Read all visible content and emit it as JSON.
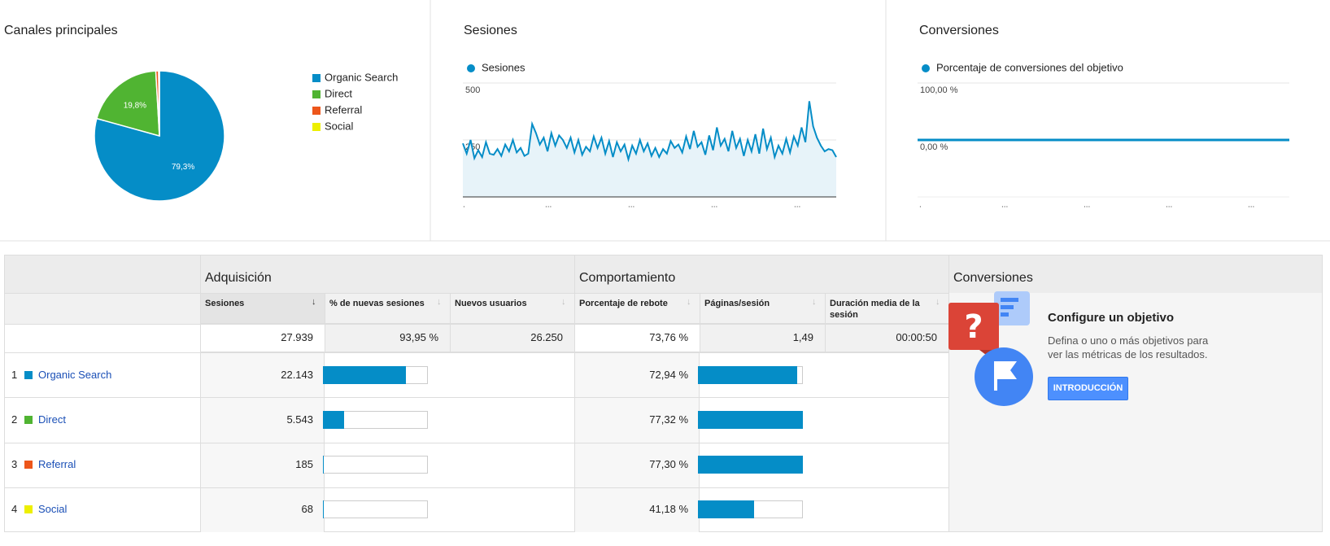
{
  "chart_data": [
    {
      "type": "pie",
      "title": "Canales principales",
      "categories": [
        "Organic Search",
        "Direct",
        "Referral",
        "Social"
      ],
      "values": [
        79.3,
        19.8,
        0.7,
        0.2
      ],
      "value_labels": [
        "79,3%",
        "19,8%",
        null,
        null
      ],
      "colors": [
        "#058dc7",
        "#50b432",
        "#ed561b",
        "#edef00"
      ]
    },
    {
      "type": "line",
      "title": "Sesiones",
      "series": [
        {
          "name": "Sesiones",
          "color": "#058dc7",
          "values": [
            235,
            190,
            250,
            170,
            205,
            175,
            240,
            190,
            185,
            210,
            180,
            230,
            200,
            250,
            195,
            215,
            180,
            190,
            320,
            280,
            230,
            260,
            200,
            280,
            225,
            270,
            250,
            215,
            260,
            195,
            250,
            185,
            220,
            200,
            265,
            215,
            260,
            190,
            245,
            175,
            240,
            200,
            230,
            165,
            225,
            190,
            250,
            200,
            235,
            180,
            215,
            175,
            210,
            190,
            245,
            215,
            230,
            195,
            265,
            210,
            290,
            220,
            240,
            185,
            270,
            205,
            305,
            225,
            255,
            200,
            290,
            215,
            255,
            180,
            250,
            200,
            275,
            190,
            300,
            210,
            260,
            175,
            225,
            190,
            255,
            195,
            265,
            225,
            305,
            240,
            420,
            310,
            260,
            225,
            200,
            210,
            205,
            175
          ]
        }
      ],
      "ylim": [
        0,
        500
      ],
      "yticks": [
        250,
        500
      ],
      "xtick_labels": [
        ".",
        "...",
        "...",
        "...",
        "..."
      ],
      "grid": true
    },
    {
      "type": "line",
      "title": "Conversiones",
      "series": [
        {
          "name": "Porcentaje de conversiones del objetivo",
          "color": "#058dc7",
          "values": [
            0,
            0,
            0,
            0,
            0,
            0,
            0,
            0,
            0,
            0,
            0,
            0,
            0,
            0,
            0,
            0,
            0,
            0,
            0,
            0,
            0,
            0,
            0,
            0,
            0,
            0,
            0,
            0,
            0,
            0
          ]
        }
      ],
      "ylim": [
        -100,
        100
      ],
      "yticks": [
        {
          "value": 100,
          "label": "100,00 %"
        },
        {
          "value": 0,
          "label": "0,00 %"
        }
      ],
      "xtick_labels": [
        ".",
        "...",
        "...",
        "...",
        "..."
      ],
      "grid": true
    }
  ],
  "table": {
    "groups": [
      "Adquisición",
      "Comportamiento",
      "Conversiones"
    ],
    "columns": [
      "Sesiones",
      "% de nuevas sesiones",
      "Nuevos usuarios",
      "Porcentaje de rebote",
      "Páginas/sesión",
      "Duración media de la sesión"
    ],
    "totals": [
      {
        "value": 27939,
        "label": "27.939"
      },
      "93,95 %",
      "26.250",
      "73,76 %",
      "1,49",
      "00:00:50"
    ],
    "rows": [
      {
        "rank": "1",
        "name": "Organic Search",
        "color": "#058dc7",
        "sessions": {
          "value": 22143,
          "label": "22.143"
        },
        "bounce_rate": {
          "value": 72.94,
          "label": "72,94 %"
        }
      },
      {
        "rank": "2",
        "name": "Direct",
        "color": "#50b432",
        "sessions": {
          "value": 5543,
          "label": "5.543"
        },
        "bounce_rate": {
          "value": 77.32,
          "label": "77,32 %"
        }
      },
      {
        "rank": "3",
        "name": "Referral",
        "color": "#ed561b",
        "sessions": {
          "value": 185,
          "label": "185"
        },
        "bounce_rate": {
          "value": 77.3,
          "label": "77,30 %"
        }
      },
      {
        "rank": "4",
        "name": "Social",
        "color": "#edef00",
        "sessions": {
          "value": 68,
          "label": "68"
        },
        "bounce_rate": {
          "value": 41.18,
          "label": "41,18 %"
        }
      }
    ]
  },
  "goal_panel": {
    "title": "Configure un objetivo",
    "text": "Defina o uno o más objetivos para ver las métricas de los resultados.",
    "button": "INTRODUCCIÓN"
  }
}
